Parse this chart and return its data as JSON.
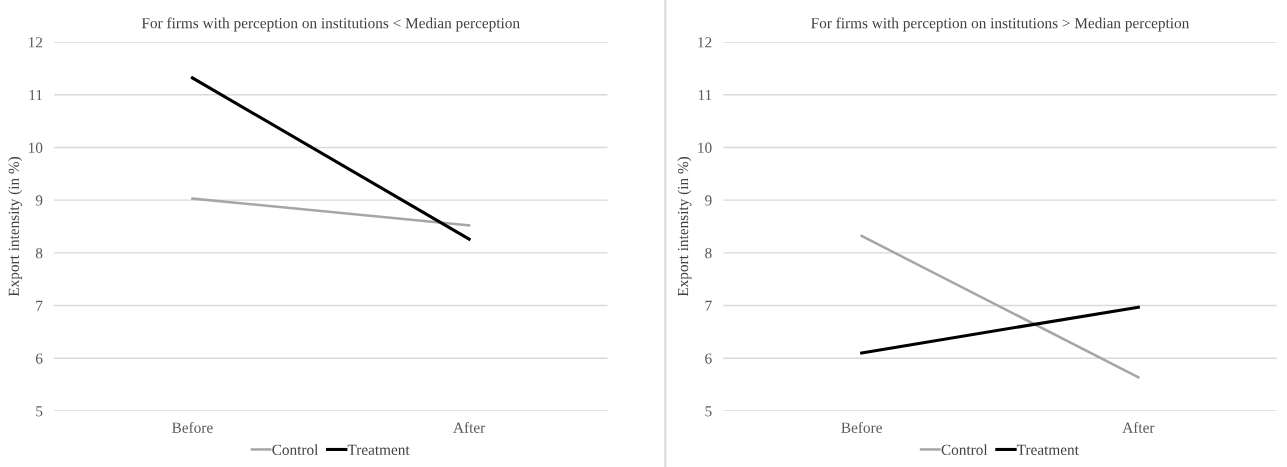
{
  "chart_data": [
    {
      "type": "line",
      "title": "For firms with perception on institutions < Median perception",
      "ylabel": "Export intensity (in %)",
      "categories": [
        "Before",
        "After"
      ],
      "ylim": [
        5,
        12
      ],
      "yticks": [
        5,
        6,
        7,
        8,
        9,
        10,
        11,
        12
      ],
      "grid": "y",
      "legend": "bottom",
      "marker": "none",
      "series": [
        {
          "name": "Control",
          "color": "#a6a6a6",
          "values": [
            9.03,
            8.52
          ]
        },
        {
          "name": "Treatment",
          "color": "#000000",
          "values": [
            11.32,
            8.26
          ]
        }
      ]
    },
    {
      "type": "line",
      "title": "For firms with perception on institutions > Median perception",
      "ylabel": "Export intensity (in %)",
      "categories": [
        "Before",
        "After"
      ],
      "ylim": [
        5,
        12
      ],
      "yticks": [
        5,
        6,
        7,
        8,
        9,
        10,
        11,
        12
      ],
      "grid": "y",
      "legend": "bottom",
      "marker": "none",
      "series": [
        {
          "name": "Control",
          "color": "#a6a6a6",
          "values": [
            8.32,
            5.64
          ]
        },
        {
          "name": "Treatment",
          "color": "#000000",
          "values": [
            6.1,
            6.97
          ]
        }
      ]
    }
  ]
}
